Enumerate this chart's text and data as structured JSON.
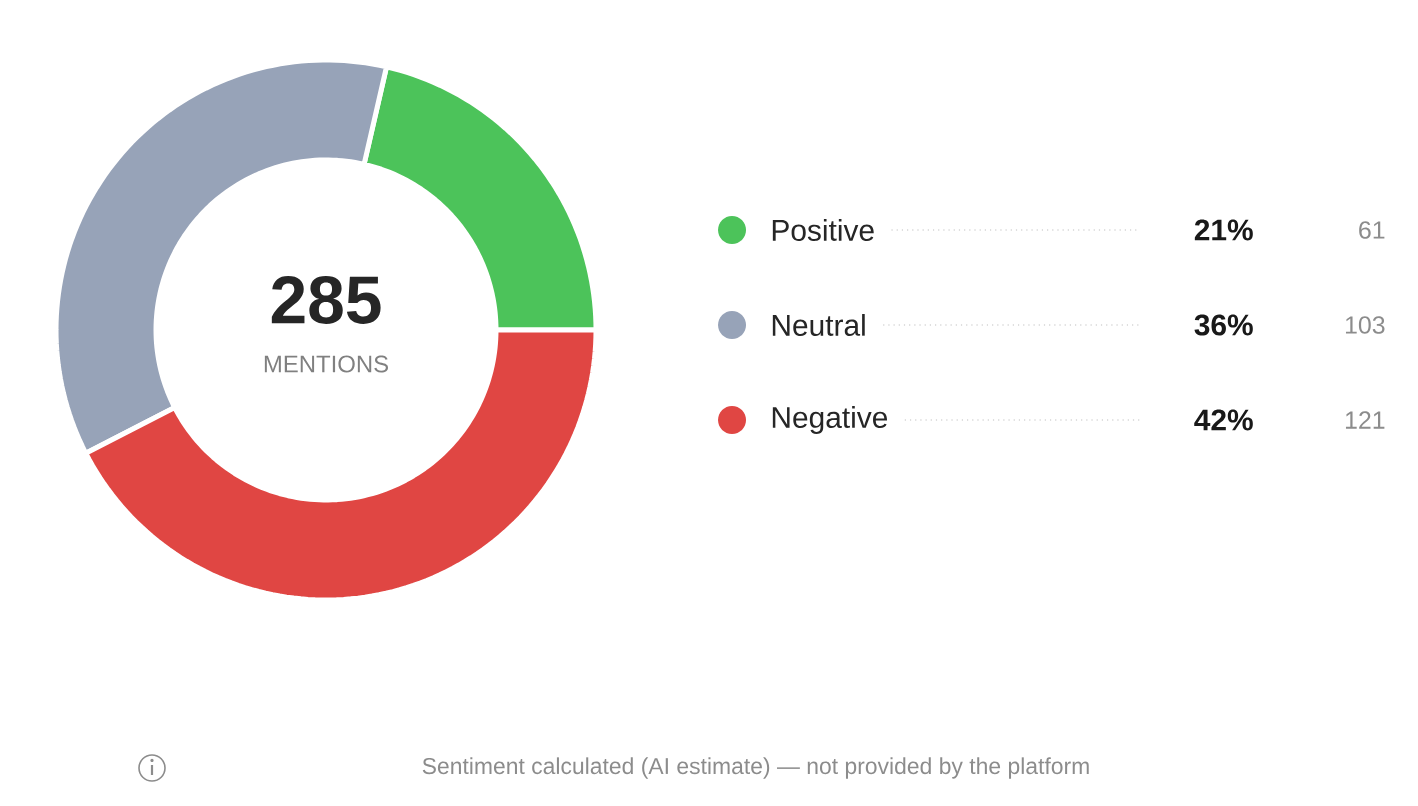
{
  "chart_data": {
    "type": "donut",
    "categories": [
      "Positive",
      "Neutral",
      "Negative"
    ],
    "values": [
      61,
      103,
      121
    ],
    "colors": [
      "#4cc35a",
      "#97a3b8",
      "#e04643"
    ],
    "data_labels": true,
    "legend": "right",
    "annotations": [
      "285",
      "MENTIONS",
      "Sentiment calculated (AI estimate) — not provided by the platform",
      "21%",
      "36%",
      "42%"
    ]
  }
}
